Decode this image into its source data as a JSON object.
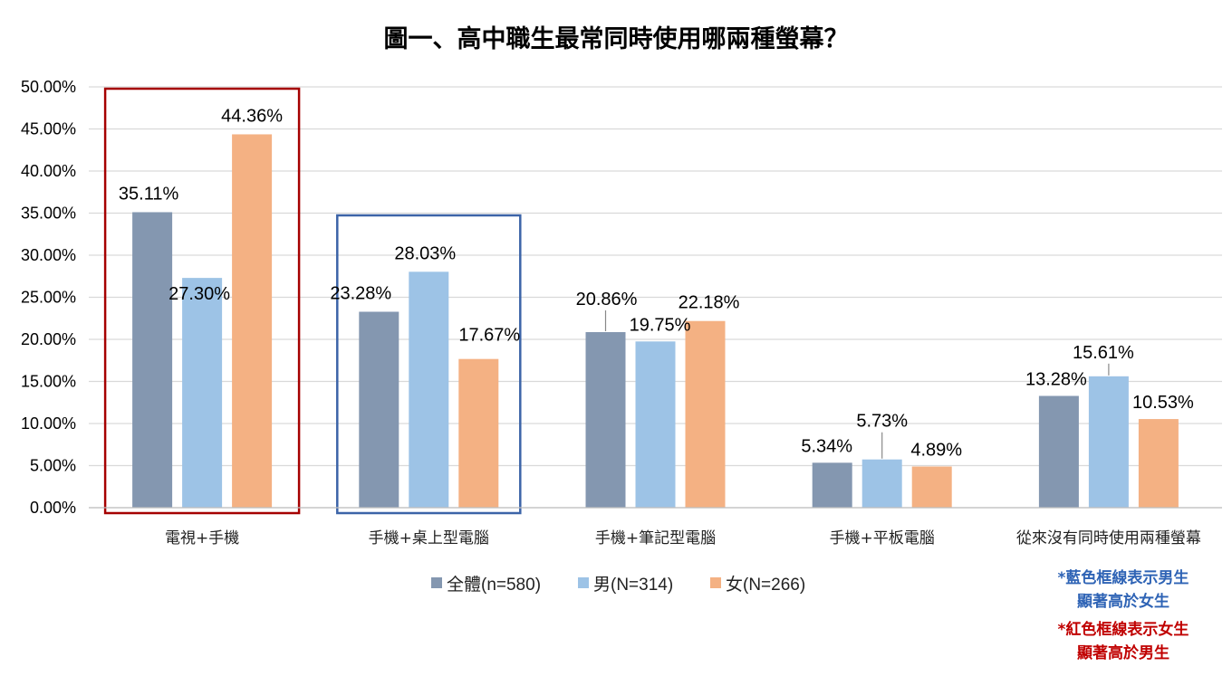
{
  "chart_data": {
    "type": "bar",
    "title": "圖一、高中職生最常同時使用哪兩種螢幕？",
    "categories": [
      "電視+手機",
      "手機+桌上型電腦",
      "手機+筆記型電腦",
      "手機+平板電腦",
      "從來沒有同時使用兩種螢幕"
    ],
    "series": [
      {
        "name": "全體(n=580)",
        "color": "#8497B0",
        "values": [
          35.11,
          23.28,
          20.86,
          5.34,
          13.28
        ],
        "labels": [
          "35.11%",
          "23.28%",
          "20.86%",
          "5.34%",
          "13.28%"
        ]
      },
      {
        "name": "男(N=314)",
        "color": "#9DC3E6",
        "values": [
          27.3,
          28.03,
          19.75,
          5.73,
          15.61
        ],
        "labels": [
          "27.30%",
          "28.03%",
          "19.75%",
          "5.73%",
          "15.61%"
        ]
      },
      {
        "name": "女(N=266)",
        "color": "#F4B183",
        "values": [
          44.36,
          17.67,
          22.18,
          4.89,
          10.53
        ],
        "labels": [
          "44.36%",
          "17.67%",
          "22.18%",
          "4.89%",
          "10.53%"
        ]
      }
    ],
    "ylim": [
      0,
      50
    ],
    "yticks": [
      "0.00%",
      "5.00%",
      "10.00%",
      "15.00%",
      "20.00%",
      "25.00%",
      "30.00%",
      "35.00%",
      "40.00%",
      "45.00%",
      "50.00%"
    ],
    "grid": true,
    "legend_position": "bottom",
    "highlight_boxes": [
      {
        "category": "電視+手機",
        "color": "#A50000"
      },
      {
        "category": "手機+桌上型電腦",
        "color": "#3C64A8"
      }
    ]
  },
  "notes": {
    "blue_line1": "*藍色框線表示男生",
    "blue_line2": "顯著高於女生",
    "blue_color": "#2E63B5",
    "red_line1": "*紅色框線表示女生",
    "red_line2": "顯著高於男生",
    "red_color": "#C00000"
  }
}
